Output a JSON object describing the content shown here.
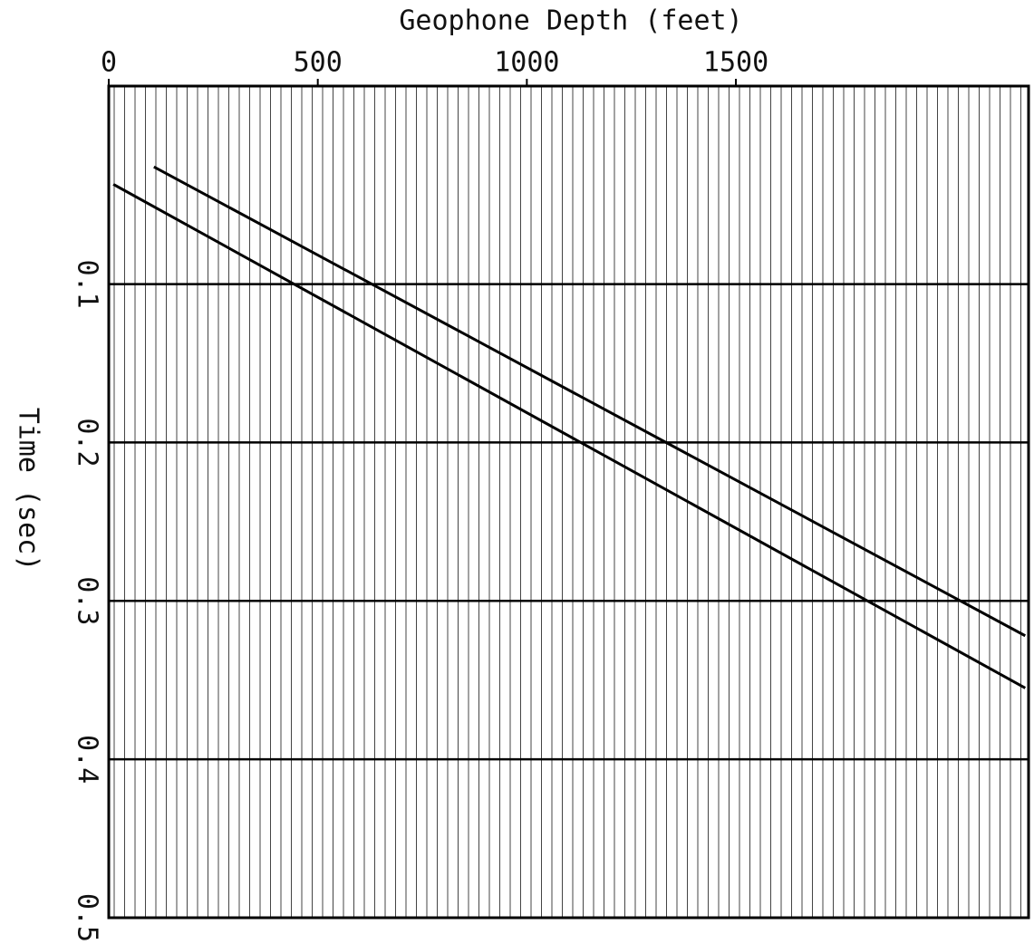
{
  "chart_data": {
    "type": "line",
    "xlabel": "Geophone Depth (feet)",
    "ylabel": "Time (sec)",
    "xlim": [
      0,
      2200
    ],
    "xticks": [
      0,
      500,
      1000,
      1500
    ],
    "ylim": [
      -0.025,
      0.5
    ],
    "yticks": [
      0.1,
      0.2,
      0.3,
      0.4,
      0.5
    ],
    "y_inverted": true,
    "grid": true,
    "series": [
      {
        "color": "#000000",
        "x": [
          108,
          2192
        ],
        "y": [
          0.026,
          0.322
        ]
      },
      {
        "color": "#000000",
        "x": [
          11,
          2192
        ],
        "y": [
          0.037,
          0.355
        ]
      }
    ]
  }
}
